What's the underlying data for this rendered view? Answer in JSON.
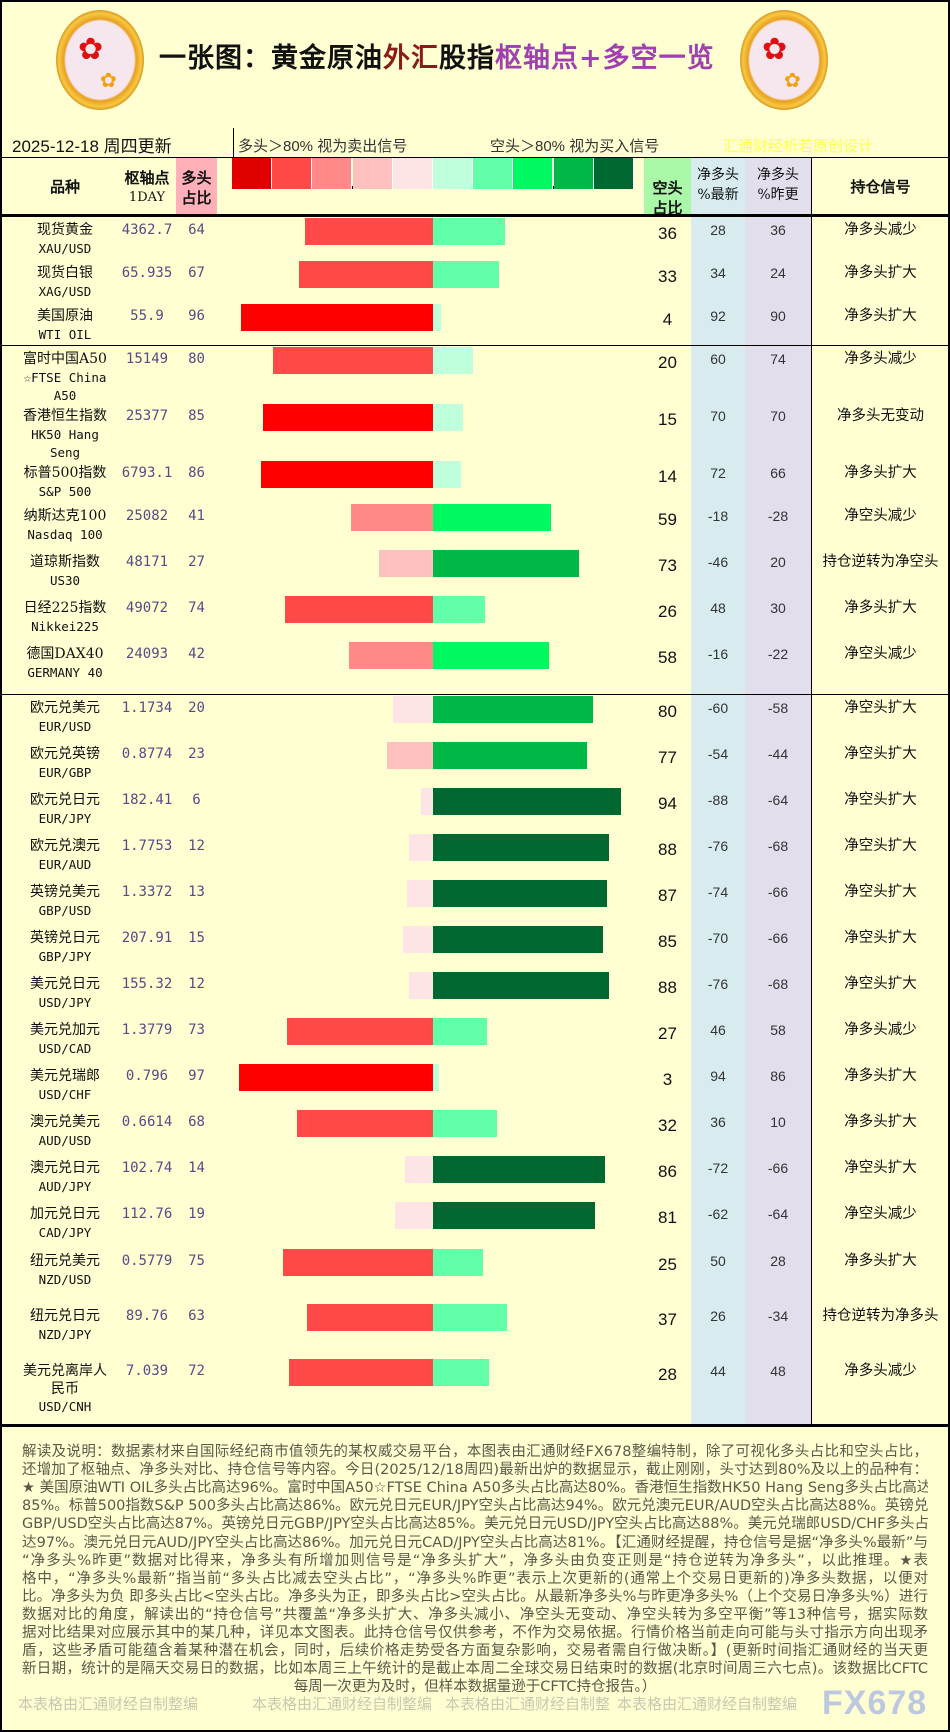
{
  "header": {
    "title_parts": [
      "一张图：黄金原油",
      "外汇",
      "股指",
      "枢轴点+多空一览"
    ],
    "date": "2025-12-18  周四更新",
    "legend_long": "多头＞80%  视为卖出信号",
    "legend_short": "空头＞80%  视为买入信号",
    "credit": "汇通财经析若原创设计"
  },
  "columns": {
    "name": "品种",
    "pivot": [
      "枢轴点",
      "1DAY"
    ],
    "long": [
      "多头",
      "占比"
    ],
    "short": [
      "空头",
      "占比"
    ],
    "net_latest": [
      "净多头",
      "%最新"
    ],
    "net_prev": [
      "净多头",
      "%昨更"
    ],
    "signal": "持仓信号"
  },
  "colors": {
    "legend_scale": [
      "#e00000",
      "#ff4848",
      "#ff8888",
      "#ffc0c0",
      "#ffe4e6",
      "#c0ffdc",
      "#60ffa8",
      "#00f860",
      "#00b848",
      "#006830"
    ],
    "long_bar": {
      "0-20": "#ffe4e6",
      "21-40": "#ffc0c0",
      "41-60": "#ff8888",
      "61-80": "#ff4848",
      "81-100": "#ff0000"
    },
    "short_bar": {
      "0-20": "#c0ffdc",
      "21-40": "#60ffa8",
      "41-60": "#00f860",
      "61-80": "#00b848",
      "81-100": "#006830"
    },
    "background": "#ffffd2",
    "long_header": "#ffb0b8",
    "short_header": "#a8f8a8",
    "net_latest_bg": "#d8ecf0",
    "net_prev_bg": "#e2deec"
  },
  "rows": [
    {
      "group": "commodities",
      "name_cn": "现货黄金",
      "name_en": "XAU/USD",
      "pivot": "4362.7",
      "long": 64,
      "short": 36,
      "net_latest": "28",
      "net_prev": "36",
      "signal": "净多头减少"
    },
    {
      "group": "commodities",
      "name_cn": "现货白银",
      "name_en": "XAG/USD",
      "pivot": "65.935",
      "long": 67,
      "short": 33,
      "net_latest": "34",
      "net_prev": "24",
      "signal": "净多头扩大"
    },
    {
      "group": "commodities",
      "name_cn": "美国原油",
      "name_en": "WTI OIL",
      "pivot": "55.9",
      "long": 96,
      "short": 4,
      "net_latest": "92",
      "net_prev": "90",
      "signal": "净多头扩大"
    },
    {
      "group": "indices",
      "name_cn": "富时中国A50",
      "name_en": "☆FTSE China",
      "name_en2": "A50",
      "pivot": "15149",
      "long": 80,
      "short": 20,
      "net_latest": "60",
      "net_prev": "74",
      "signal": "净多头减少"
    },
    {
      "group": "indices",
      "name_cn": "香港恒生指数",
      "name_en": "HK50 Hang",
      "name_en2": "Seng",
      "pivot": "25377",
      "long": 85,
      "short": 15,
      "net_latest": "70",
      "net_prev": "70",
      "signal": "净多头无变动"
    },
    {
      "group": "indices",
      "name_cn": "标普500指数",
      "name_en": "S&P 500",
      "pivot": "6793.1",
      "long": 86,
      "short": 14,
      "net_latest": "72",
      "net_prev": "66",
      "signal": "净多头扩大"
    },
    {
      "group": "indices",
      "name_cn": "纳斯达克100",
      "name_en": "Nasdaq 100",
      "pivot": "25082",
      "long": 41,
      "short": 59,
      "net_latest": "-18",
      "net_prev": "-28",
      "signal": "净空头减少"
    },
    {
      "group": "indices",
      "name_cn": "道琼斯指数",
      "name_en": "US30",
      "pivot": "48171",
      "long": 27,
      "short": 73,
      "net_latest": "-46",
      "net_prev": "20",
      "signal": "持仓逆转为净空头"
    },
    {
      "group": "indices",
      "name_cn": "日经225指数",
      "name_en": "Nikkei225",
      "pivot": "49072",
      "long": 74,
      "short": 26,
      "net_latest": "48",
      "net_prev": "30",
      "signal": "净多头扩大"
    },
    {
      "group": "indices",
      "name_cn": "德国DAX40",
      "name_en": "GERMANY 40",
      "pivot": "24093",
      "long": 42,
      "short": 58,
      "net_latest": "-16",
      "net_prev": "-22",
      "signal": "净空头减少"
    },
    {
      "group": "fx",
      "name_cn": "欧元兑美元",
      "name_en": "EUR/USD",
      "pivot": "1.1734",
      "long": 20,
      "short": 80,
      "net_latest": "-60",
      "net_prev": "-58",
      "signal": "净空头扩大"
    },
    {
      "group": "fx",
      "name_cn": "欧元兑英镑",
      "name_en": "EUR/GBP",
      "pivot": "0.8774",
      "long": 23,
      "short": 77,
      "net_latest": "-54",
      "net_prev": "-44",
      "signal": "净空头扩大"
    },
    {
      "group": "fx",
      "name_cn": "欧元兑日元",
      "name_en": "EUR/JPY",
      "pivot": "182.41",
      "long": 6,
      "short": 94,
      "net_latest": "-88",
      "net_prev": "-64",
      "signal": "净空头扩大"
    },
    {
      "group": "fx",
      "name_cn": "欧元兑澳元",
      "name_en": "EUR/AUD",
      "pivot": "1.7753",
      "long": 12,
      "short": 88,
      "net_latest": "-76",
      "net_prev": "-68",
      "signal": "净空头扩大"
    },
    {
      "group": "fx",
      "name_cn": "英镑兑美元",
      "name_en": "GBP/USD",
      "pivot": "1.3372",
      "long": 13,
      "short": 87,
      "net_latest": "-74",
      "net_prev": "-66",
      "signal": "净空头扩大"
    },
    {
      "group": "fx",
      "name_cn": "英镑兑日元",
      "name_en": "GBP/JPY",
      "pivot": "207.91",
      "long": 15,
      "short": 85,
      "net_latest": "-70",
      "net_prev": "-66",
      "signal": "净空头扩大"
    },
    {
      "group": "fx",
      "name_cn": "美元兑日元",
      "name_en": "USD/JPY",
      "pivot": "155.32",
      "long": 12,
      "short": 88,
      "net_latest": "-76",
      "net_prev": "-68",
      "signal": "净空头扩大"
    },
    {
      "group": "fx",
      "name_cn": "美元兑加元",
      "name_en": "USD/CAD",
      "pivot": "1.3779",
      "long": 73,
      "short": 27,
      "net_latest": "46",
      "net_prev": "58",
      "signal": "净多头减少"
    },
    {
      "group": "fx",
      "name_cn": "美元兑瑞郎",
      "name_en": "USD/CHF",
      "pivot": "0.796",
      "long": 97,
      "short": 3,
      "net_latest": "94",
      "net_prev": "86",
      "signal": "净多头扩大"
    },
    {
      "group": "fx",
      "name_cn": "澳元兑美元",
      "name_en": "AUD/USD",
      "pivot": "0.6614",
      "long": 68,
      "short": 32,
      "net_latest": "36",
      "net_prev": "10",
      "signal": "净多头扩大"
    },
    {
      "group": "fx",
      "name_cn": "澳元兑日元",
      "name_en": "AUD/JPY",
      "pivot": "102.74",
      "long": 14,
      "short": 86,
      "net_latest": "-72",
      "net_prev": "-66",
      "signal": "净空头扩大"
    },
    {
      "group": "fx",
      "name_cn": "加元兑日元",
      "name_en": "CAD/JPY",
      "pivot": "112.76",
      "long": 19,
      "short": 81,
      "net_latest": "-62",
      "net_prev": "-64",
      "signal": "净空头减少"
    },
    {
      "group": "fx",
      "name_cn": "纽元兑美元",
      "name_en": "NZD/USD",
      "pivot": "0.5779",
      "long": 75,
      "short": 25,
      "net_latest": "50",
      "net_prev": "28",
      "signal": "净多头扩大"
    },
    {
      "group": "fx",
      "name_cn": "纽元兑日元",
      "name_en": "NZD/JPY",
      "pivot": "89.76",
      "long": 63,
      "short": 37,
      "net_latest": "26",
      "net_prev": "-34",
      "signal": "持仓逆转为净多头"
    },
    {
      "group": "fx",
      "name_cn": "美元兑离岸人",
      "name_cn2": "民币",
      "name_en": "USD/CNH",
      "pivot": "7.039",
      "long": 72,
      "short": 28,
      "net_latest": "44",
      "net_prev": "48",
      "signal": "净多头减少"
    }
  ],
  "footer": {
    "lines": [
      "解读及说明：数据素材来自国际经纪商市值领先的某权威交易平台，本图表由汇通财经FX678整编特制，除了可视化多头占比和空头占比，",
      "还增加了枢轴点、净多头对比、持仓信号等内容。今日(2025/12/18周四)最新出炉的数据显示，截止刚刚，头寸达到80%及以上的品种有：",
      "★ 美国原油WTI OIL多头占比高达96%。富时中国A50☆FTSE China A50多头占比高达80%。香港恒生指数HK50 Hang Seng多头占比高达",
      "85%。标普500指数S&P 500多头占比高达86%。欧元兑日元EUR/JPY空头占比高达94%。欧元兑澳元EUR/AUD空头占比高达88%。英镑兑美元",
      "GBP/USD空头占比高达87%。英镑兑日元GBP/JPY空头占比高达85%。美元兑日元USD/JPY空头占比高达88%。美元兑瑞郎USD/CHF多头占比高",
      "达97%。澳元兑日元AUD/JPY空头占比高达86%。加元兑日元CAD/JPY空头占比高达81%。【汇通财经提醒，持仓信号是据“净多头%最新”与",
      "“净多头%昨更”数据对比得来，净多头有所增加则信号是“净多头扩大”，净多头由负变正则是“持仓逆转为净多头”，以此推理。★表",
      "格中，“净多头%最新”指当前“多头占比减去空头占比”，“净多头%昨更”表示上次更新的(通常上个交易日更新的)净多头数据，以便对",
      "比。净多头为负 即多头占比<空头占比。净多头为正，即多头占比>空头占比。从最新净多头%与昨更净多头%（上个交易日净多头%）进行",
      "数据对比的角度，解读出的“持仓信号”共覆盖“净多头扩大、净多头减小、净空头无变动、净空头转为多空平衡”等13种信号，据实际数",
      "据对比结果对应展示其中的某几种，详见本文图表。此持仓信号仅供参考，不作为交易依据。行情价格当前走向可能与头寸指示方向出现矛",
      "盾，这些矛盾可能蕴含着某种潜在机会，同时，后续价格走势受各方面复杂影响，交易者需自行做决断。】(更新时间指汇通财经的当天更",
      "新日期，统计的是隔天交易日的数据，比如本周三上午统计的是截止本周二全球交易日结束时的数据(北京时间周三六七点)。该数据比CFTC",
      "每周一次更为及时，但样本数据量逊于CFTC持仓报告。）"
    ],
    "watermarks": [
      "本表格由汇通财经自制整编",
      "本表格由汇通财经自制整编",
      "本表格由汇通财经自制整",
      "本表格由汇通财经自制整编"
    ],
    "brand_logo": "FX678"
  }
}
